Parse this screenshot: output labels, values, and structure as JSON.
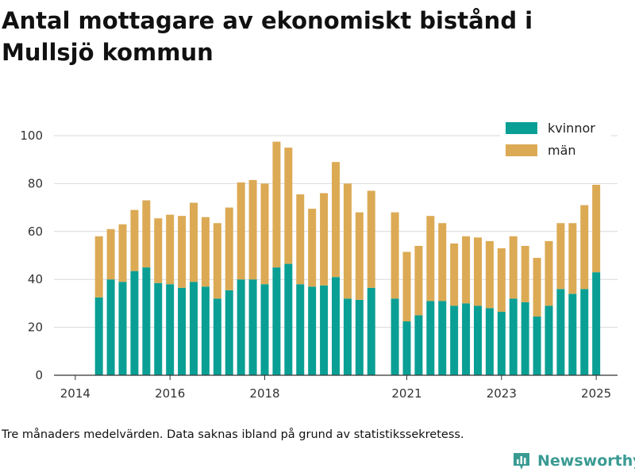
{
  "title": "Antal mottagare av ekonomiskt bistånd i Mullsjö kommun",
  "footnote": "Tre månaders medelvärden. Data saknas ibland på grund av statistikssekretess.",
  "brand": {
    "name": "Newsworthy",
    "icon": "bar-chart-logo-icon"
  },
  "colors": {
    "kvinnor": "#0a9f94",
    "man": "#dcaa55",
    "grid": "#d9d9d9",
    "axis": "#333333",
    "brand": "#3a9b93"
  },
  "chart_data": {
    "type": "bar",
    "stacked": true,
    "x_ticks": [
      "2014",
      "2016",
      "2018",
      "2021",
      "2023",
      "2025"
    ],
    "x_tick_values": [
      2014.0,
      2016.0,
      2018.0,
      2021.0,
      2023.0,
      2025.0
    ],
    "ylim": [
      0,
      100
    ],
    "y_ticks": [
      0,
      20,
      40,
      60,
      80,
      100
    ],
    "grid": true,
    "legend_position": "top-right",
    "x": [
      2014.5,
      2014.75,
      2015.0,
      2015.25,
      2015.5,
      2015.75,
      2016.0,
      2016.25,
      2016.5,
      2016.75,
      2017.0,
      2017.25,
      2017.5,
      2017.75,
      2018.0,
      2018.25,
      2018.5,
      2018.75,
      2019.0,
      2019.25,
      2019.5,
      2019.75,
      2020.0,
      2020.25,
      2020.75,
      2021.0,
      2021.25,
      2021.5,
      2021.75,
      2022.0,
      2022.25,
      2022.5,
      2022.75,
      2023.0,
      2023.25,
      2023.5,
      2023.75,
      2024.0,
      2024.25,
      2024.5,
      2024.75,
      2025.0
    ],
    "series": [
      {
        "name": "kvinnor",
        "values": [
          32.5,
          40,
          39,
          43.5,
          45,
          38.5,
          38,
          36.5,
          39,
          37,
          32,
          35.5,
          40,
          40,
          38,
          45,
          46.5,
          38,
          37,
          37.5,
          41,
          32,
          31.5,
          36.5,
          32,
          22.5,
          25,
          31,
          31,
          29,
          30,
          29,
          28,
          26.5,
          32,
          30.5,
          24.5,
          29,
          36,
          34,
          36,
          43
        ]
      },
      {
        "name": "män",
        "values": [
          25.5,
          21,
          24,
          25.5,
          28,
          27,
          29,
          30,
          33,
          29,
          31.5,
          34.5,
          40.5,
          41.5,
          42,
          52.5,
          48.5,
          37.5,
          32.5,
          38.5,
          48,
          48,
          36.5,
          40.5,
          36,
          29,
          29,
          35.5,
          32.5,
          26,
          28,
          28.5,
          28,
          26.5,
          26,
          23.5,
          24.5,
          27,
          27.5,
          29.5,
          35,
          36.5
        ]
      }
    ]
  }
}
